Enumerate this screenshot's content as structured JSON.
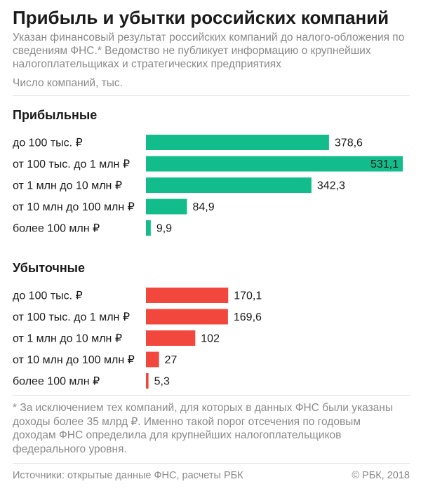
{
  "title": "Прибыль и убытки российских компаний",
  "subtitle": "Указан финансовый результат российских компаний до налого-обложения по сведениям ФНС.* Ведомство не публикует информацию о крупнейших налогоплательщиках и стратегических предприятиях",
  "unit_label": "Число компаний, тыс.",
  "footnote": "* За исключением тех компаний, для которых в данных ФНС были указаны доходы более 35 млрд ₽. Именно такой порог отсечения по годовым доходам ФНС определила для крупнейших налогоплательщиков федерального уровня.",
  "source": "Источники: открытые данные ФНС, расчеты РБК",
  "copyright": "© РБК, 2018",
  "colors": {
    "profit": "#13bd8b",
    "loss": "#f2473d"
  },
  "chart_data": {
    "type": "bar",
    "orientation": "horizontal",
    "xlim": [
      0,
      531.1
    ],
    "groups": [
      {
        "name": "Прибыльные",
        "color": "#13bd8b",
        "categories": [
          "до 100 тыс. ₽",
          "от 100 тыс. до 1 млн ₽",
          "от 1 млн до 10 млн ₽",
          "от 10 млн до 100 млн ₽",
          "более 100 млн ₽"
        ],
        "values": [
          378.6,
          531.1,
          342.3,
          84.9,
          9.9
        ],
        "labels": [
          "378,6",
          "531,1",
          "342,3",
          "84,9",
          "9,9"
        ]
      },
      {
        "name": "Убыточные",
        "color": "#f2473d",
        "categories": [
          "до 100 тыс. ₽",
          "от 100 тыс. до 1 млн ₽",
          "от 1 млн до 10 млн ₽",
          "от 10 млн до 100 млн ₽",
          "более 100 млн ₽"
        ],
        "values": [
          170.1,
          169.6,
          102,
          27,
          5.3
        ],
        "labels": [
          "170,1",
          "169,6",
          "102",
          "27",
          "5,3"
        ]
      }
    ]
  }
}
